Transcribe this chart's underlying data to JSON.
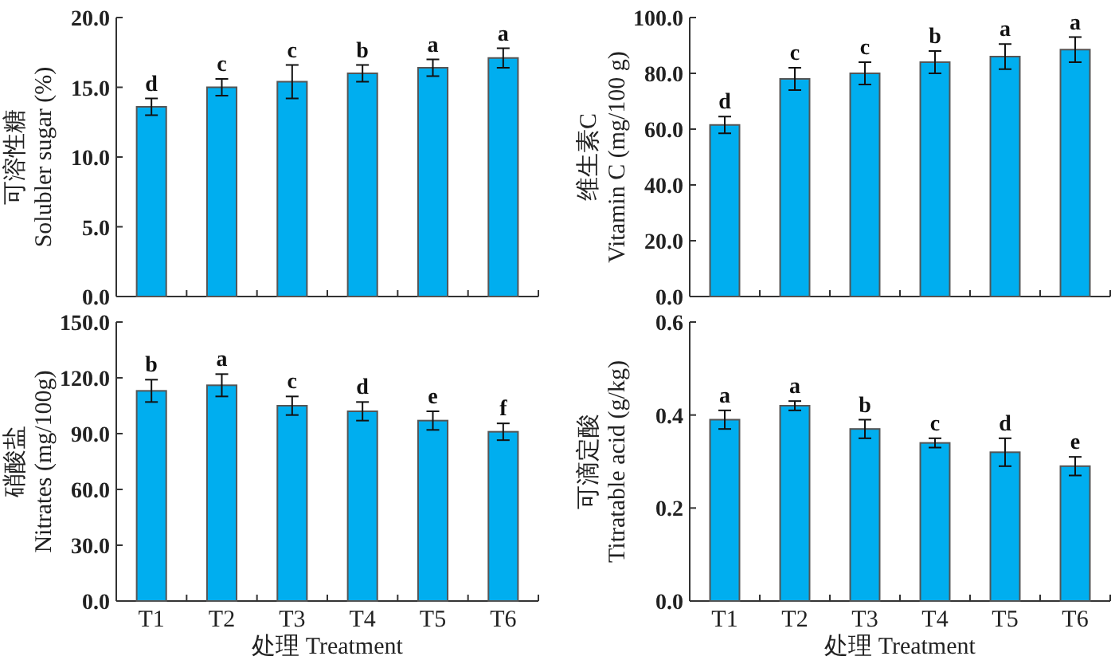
{
  "chart_data": [
    {
      "type": "bar",
      "ylabel": "可溶性糖\nSolubler sugar (%)",
      "categories": [
        null,
        null,
        null,
        null,
        null,
        null
      ],
      "tick_labels": "y",
      "series": [
        {
          "color": "#00aeef",
          "values": [
            13.6,
            15.0,
            15.4,
            16.0,
            16.4,
            17.1
          ],
          "errors": [
            0.6,
            0.6,
            1.2,
            0.6,
            0.6,
            0.7
          ]
        }
      ],
      "ylim": [
        0,
        20
      ],
      "yticks": [
        {
          "value": 0,
          "label": "0.0"
        },
        {
          "value": 5,
          "label": "5.0"
        },
        {
          "value": 10,
          "label": "10.0"
        },
        {
          "value": 15,
          "label": "15.0"
        },
        {
          "value": 20,
          "label": "20.0"
        }
      ],
      "annotations": [
        "d",
        "c",
        "c",
        "b",
        "a",
        "a"
      ]
    },
    {
      "type": "bar",
      "ylabel": "维生素C\nVitamin C (mg/100 g)",
      "categories": [
        null,
        null,
        null,
        null,
        null,
        null
      ],
      "tick_labels": "y",
      "series": [
        {
          "color": "#00aeef",
          "values": [
            61.5,
            78.0,
            80.0,
            84.0,
            86.0,
            88.5
          ],
          "errors": [
            3,
            4,
            4,
            4,
            4.5,
            4.5
          ]
        }
      ],
      "ylim": [
        0,
        100
      ],
      "yticks": [
        {
          "value": 0,
          "label": "0.0"
        },
        {
          "value": 20,
          "label": "20.0"
        },
        {
          "value": 40,
          "label": "40.0"
        },
        {
          "value": 60,
          "label": "60.0"
        },
        {
          "value": 80,
          "label": "80.0"
        },
        {
          "value": 100,
          "label": "100.0"
        }
      ],
      "annotations": [
        "d",
        "c",
        "c",
        "b",
        "a",
        "a"
      ]
    },
    {
      "type": "bar",
      "ylabel": "硝酸盐\nNitrates (mg/100g)",
      "xlabel": "处理 Treatment",
      "categories": [
        "T1",
        "T2",
        "T3",
        "T4",
        "T5",
        "T6"
      ],
      "series": [
        {
          "color": "#00aeef",
          "values": [
            113,
            116,
            105,
            102,
            97,
            91
          ],
          "errors": [
            6,
            6,
            5,
            5,
            5,
            4.5
          ]
        }
      ],
      "ylim": [
        0,
        150
      ],
      "yticks": [
        {
          "value": 0,
          "label": "0.0"
        },
        {
          "value": 30,
          "label": "30.0"
        },
        {
          "value": 60,
          "label": "60.0"
        },
        {
          "value": 90,
          "label": "90.0"
        },
        {
          "value": 120,
          "label": "120.0"
        },
        {
          "value": 150,
          "label": "150.0"
        }
      ],
      "annotations": [
        "b",
        "a",
        "c",
        "d",
        "e",
        "f"
      ]
    },
    {
      "type": "bar",
      "ylabel": "可滴定酸\nTitratable acid (g/kg)",
      "xlabel": "处理 Treatment",
      "categories": [
        "T1",
        "T2",
        "T3",
        "T4",
        "T5",
        "T6"
      ],
      "series": [
        {
          "color": "#00aeef",
          "values": [
            0.39,
            0.42,
            0.37,
            0.34,
            0.32,
            0.29
          ],
          "errors": [
            0.02,
            0.01,
            0.02,
            0.01,
            0.03,
            0.02
          ]
        }
      ],
      "ylim": [
        0,
        0.6
      ],
      "yticks": [
        {
          "value": 0,
          "label": "0.0"
        },
        {
          "value": 0.2,
          "label": "0.2"
        },
        {
          "value": 0.4,
          "label": "0.4"
        },
        {
          "value": 0.6,
          "label": "0.6"
        }
      ],
      "annotations": [
        "a",
        "a",
        "b",
        "c",
        "d",
        "e"
      ]
    }
  ]
}
